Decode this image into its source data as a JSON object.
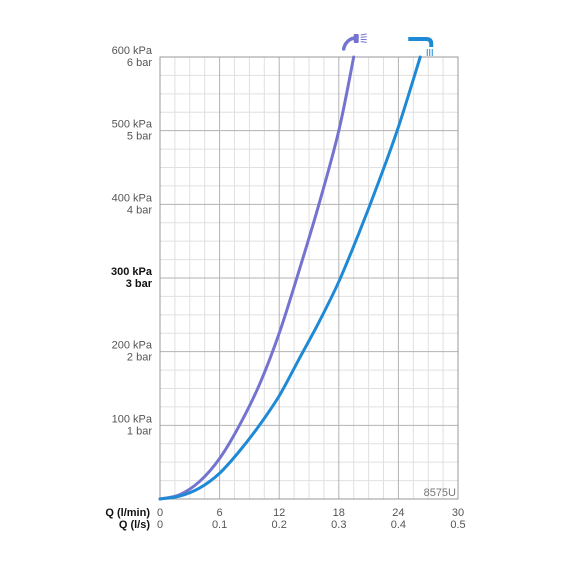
{
  "chart_data": {
    "type": "line",
    "title": "",
    "code_label": "8575U",
    "x_axes": [
      {
        "name": "Q (l/min)",
        "range": [
          0,
          30
        ],
        "ticks": [
          "0",
          "6",
          "12",
          "18",
          "24",
          "30"
        ]
      },
      {
        "name": "Q (l/s)",
        "range": [
          0,
          0.5
        ],
        "ticks": [
          "0",
          "0.1",
          "0.2",
          "0.3",
          "0.4",
          "0.5"
        ]
      }
    ],
    "y_axis": {
      "range": [
        0,
        600
      ],
      "unit": "kPa",
      "ticks": [
        {
          "value": 100,
          "kpa": "100 kPa",
          "bar": "1 bar",
          "bold": false
        },
        {
          "value": 200,
          "kpa": "200 kPa",
          "bar": "2 bar",
          "bold": false
        },
        {
          "value": 300,
          "kpa": "300 kPa",
          "bar": "3 bar",
          "bold": true
        },
        {
          "value": 400,
          "kpa": "400 kPa",
          "bar": "4 bar",
          "bold": false
        },
        {
          "value": 500,
          "kpa": "500 kPa",
          "bar": "5 bar",
          "bold": false
        },
        {
          "value": 600,
          "kpa": "600 kPa",
          "bar": "6 bar",
          "bold": false
        }
      ]
    },
    "grid": {
      "major_x_step": 6,
      "minor_x_step": 1.5,
      "major_y_step": 100,
      "minor_y_step": 25
    },
    "series": [
      {
        "icon": "hand-shower-icon",
        "color": "#7474d0",
        "x": [
          0,
          2,
          4,
          6,
          8,
          10,
          12,
          14,
          16,
          18,
          19.5
        ],
        "y": [
          0,
          6,
          24,
          55,
          100,
          155,
          225,
          310,
          400,
          500,
          600
        ]
      },
      {
        "icon": "bath-spout-icon",
        "color": "#1e8ad6",
        "x": [
          0,
          2,
          4,
          6,
          8,
          10,
          12,
          14,
          16,
          18,
          20,
          22,
          24,
          26.2
        ],
        "y": [
          0,
          4,
          15,
          35,
          65,
          100,
          140,
          190,
          240,
          295,
          360,
          430,
          505,
          600
        ]
      }
    ]
  }
}
